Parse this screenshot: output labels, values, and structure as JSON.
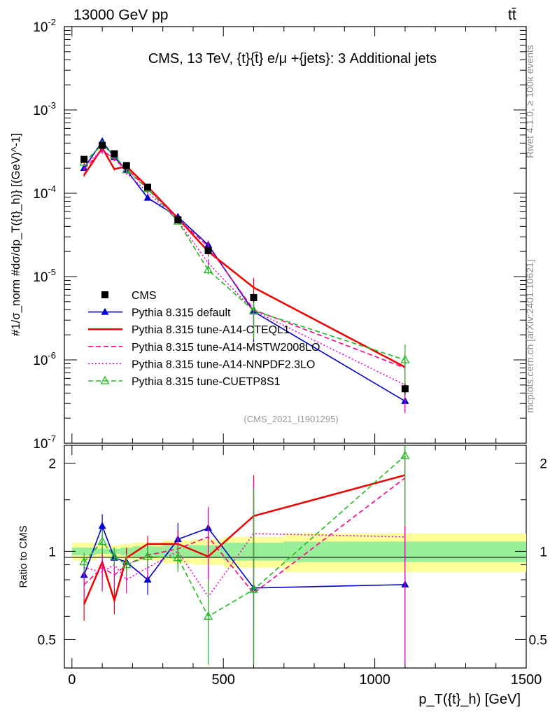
{
  "header": {
    "beam": "13000 GeV pp",
    "process": "tt̄",
    "rivet": "Rivet 4.1.0, ≥ 100k events",
    "mcplots": "mcplots.cern.ch [arXiv:2401.10621]"
  },
  "chart_data": {
    "type": "line",
    "title": "CMS, 13 TeV, {t}{t̄} e/μ +{jets}: 3 Additional jets",
    "analysis": "(CMS_2021_I1901295)",
    "xlabel": "p_T({t}_h) [GeV]",
    "ylabel_main": "#1/σ_norm #dσ/dp_T({t}_h)} [(GeV)^-1]",
    "ylabel_ratio": "Ratio to CMS",
    "xlim": [
      -25,
      1500
    ],
    "ylim_main": [
      1e-07,
      0.01
    ],
    "ylim_ratio": [
      0.4,
      2.3
    ],
    "x_ticks": [
      "0",
      "500",
      "1000",
      "1500"
    ],
    "y_ticks_main": [
      "10^-7",
      "10^-6",
      "10^-5",
      "10^-4",
      "10^-3",
      "10^-2"
    ],
    "y_ticks_ratio": [
      "0.5",
      "1",
      "2"
    ],
    "x": [
      40,
      100,
      140,
      180,
      250,
      350,
      450,
      600,
      1100
    ],
    "bin_edges": [
      0,
      80,
      120,
      160,
      200,
      300,
      400,
      500,
      700,
      1500
    ],
    "data": {
      "name": "CMS",
      "values": [
        0.000255,
        0.000375,
        0.000298,
        0.000215,
        0.000118,
        4.8e-05,
        2.05e-05,
        5.6e-06,
        4.5e-07
      ],
      "band_inner": [
        0.03,
        0.02,
        0.02,
        0.03,
        0.04,
        0.05,
        0.05,
        0.07,
        0.08
      ],
      "band_outer": [
        0.07,
        0.05,
        0.05,
        0.06,
        0.07,
        0.09,
        0.1,
        0.12,
        0.15
      ]
    },
    "series": [
      {
        "name": "Pythia 8.315 default",
        "color": "#0000cc",
        "style": "solid",
        "marker": "triangle-filled",
        "values": [
          0.0002,
          0.00042,
          0.00027,
          0.00019,
          8.8e-05,
          5.2e-05,
          2.4e-05,
          3.8e-06,
          3.2e-07
        ],
        "ratio": [
          0.83,
          1.22,
          0.95,
          0.92,
          0.8,
          1.1,
          1.2,
          0.75,
          0.77
        ],
        "ratio_err": [
          0.07,
          0.12,
          0.08,
          0.08,
          0.09,
          0.15,
          0.2,
          0.95,
          0.45
        ]
      },
      {
        "name": "Pythia 8.315 tune-A14-CTEQL1",
        "color": "#ee0000",
        "style": "solid",
        "marker": "none",
        "values": [
          0.000165,
          0.00035,
          0.000195,
          0.00021,
          0.00012,
          5e-05,
          2e-05,
          7.4e-06,
          8.2e-07
        ],
        "ratio": [
          0.66,
          0.92,
          0.68,
          0.95,
          1.06,
          1.06,
          0.96,
          1.32,
          1.82
        ],
        "ratio_err": [
          0.08,
          0.12,
          0.07,
          0.08,
          0.07,
          0.12,
          0.22,
          0.5,
          0.8
        ]
      },
      {
        "name": "Pythia 8.315 tune-A14-MSTW2008LO",
        "color": "#ff0088",
        "style": "dashed",
        "marker": "none",
        "values": [
          0.000195,
          0.00033,
          0.000255,
          0.000195,
          0.000115,
          4.9e-05,
          2.3e-05,
          4e-06,
          8e-07
        ],
        "ratio": [
          0.77,
          0.88,
          0.83,
          0.9,
          0.97,
          1.02,
          1.12,
          0.72,
          1.78
        ],
        "ratio_err": [
          0.08,
          0.12,
          0.08,
          0.08,
          0.08,
          0.14,
          0.3,
          0.9,
          0.9
        ]
      },
      {
        "name": "Pythia 8.315 tune-A14-NNPDF2.3LO",
        "color": "#ee00cc",
        "style": "dotted",
        "marker": "none",
        "values": [
          0.00022,
          0.00032,
          0.00027,
          0.000175,
          0.000103,
          4.7e-05,
          1.45e-05,
          3.9e-06,
          5e-07
        ],
        "ratio": [
          0.88,
          0.85,
          0.9,
          0.8,
          0.88,
          1.0,
          0.7,
          1.15,
          1.12
        ],
        "ratio_err": [
          0.08,
          0.12,
          0.08,
          0.08,
          0.08,
          0.12,
          0.2,
          0.6,
          0.9
        ]
      },
      {
        "name": "Pythia 8.315 tune-CUETP8S1",
        "color": "#22bb22",
        "style": "dashed",
        "marker": "triangle-open",
        "values": [
          0.000235,
          0.00038,
          0.000285,
          0.00019,
          0.000113,
          4.6e-05,
          1.2e-05,
          3.9e-06,
          1e-06
        ],
        "ratio": [
          0.92,
          1.08,
          0.96,
          0.9,
          0.96,
          0.95,
          0.6,
          0.74,
          2.12
        ],
        "ratio_err": [
          0.07,
          0.1,
          0.07,
          0.08,
          0.08,
          0.1,
          0.2,
          0.9,
          0.9
        ]
      }
    ]
  }
}
